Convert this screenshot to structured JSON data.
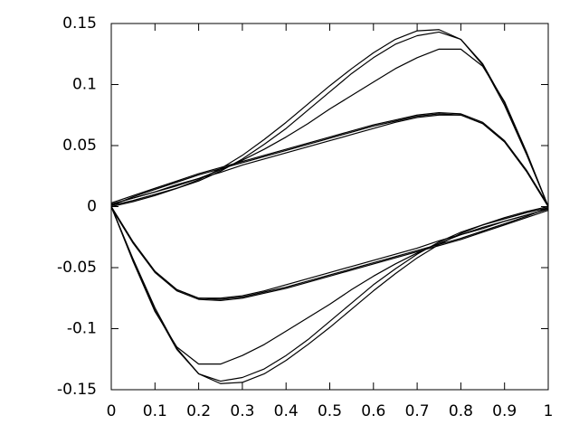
{
  "chart_data": {
    "type": "line",
    "x": [
      0,
      0.05,
      0.1,
      0.15,
      0.2,
      0.25,
      0.3,
      0.35,
      0.4,
      0.45,
      0.5,
      0.55,
      0.6,
      0.65,
      0.7,
      0.75,
      0.8,
      0.85,
      0.9,
      0.95,
      1
    ],
    "series": [
      {
        "color": "#000000",
        "values": [
          0,
          0.004,
          0.009,
          0.015,
          0.022,
          0.031,
          0.042,
          0.055,
          0.069,
          0.084,
          0.099,
          0.113,
          0.126,
          0.137,
          0.144,
          0.145,
          0.137,
          0.116,
          0.083,
          0.043,
          0
        ]
      },
      {
        "color": "#000000",
        "values": [
          0.001,
          0.005,
          0.01,
          0.015,
          0.021,
          0.029,
          0.039,
          0.051,
          0.064,
          0.079,
          0.094,
          0.109,
          0.122,
          0.133,
          0.14,
          0.143,
          0.137,
          0.117,
          0.085,
          0.044,
          0
        ]
      },
      {
        "color": "#000000",
        "values": [
          0.002,
          0.007,
          0.012,
          0.017,
          0.023,
          0.03,
          0.038,
          0.047,
          0.057,
          0.068,
          0.08,
          0.091,
          0.102,
          0.113,
          0.122,
          0.129,
          0.129,
          0.115,
          0.086,
          0.045,
          0
        ]
      },
      {
        "color": "#000000",
        "values": [
          0.001,
          0.008,
          0.014,
          0.02,
          0.026,
          0.031,
          0.036,
          0.041,
          0.046,
          0.051,
          0.056,
          0.061,
          0.066,
          0.07,
          0.074,
          0.076,
          0.075,
          0.068,
          0.053,
          0.029,
          0
        ]
      },
      {
        "color": "#000000",
        "values": [
          0.003,
          0.009,
          0.015,
          0.021,
          0.027,
          0.032,
          0.037,
          0.042,
          0.047,
          0.052,
          0.057,
          0.062,
          0.067,
          0.071,
          0.075,
          0.077,
          0.076,
          0.069,
          0.054,
          0.03,
          0.001
        ]
      },
      {
        "color": "#000000",
        "values": [
          0.002,
          0.007,
          0.012,
          0.018,
          0.023,
          0.028,
          0.034,
          0.039,
          0.044,
          0.049,
          0.054,
          0.059,
          0.064,
          0.069,
          0.073,
          0.075,
          0.075,
          0.068,
          0.053,
          0.029,
          0
        ]
      },
      {
        "color": "#000000",
        "values": [
          0,
          -0.043,
          -0.083,
          -0.116,
          -0.137,
          -0.145,
          -0.144,
          -0.137,
          -0.126,
          -0.113,
          -0.099,
          -0.084,
          -0.069,
          -0.055,
          -0.042,
          -0.031,
          -0.022,
          -0.015,
          -0.009,
          -0.004,
          0
        ]
      },
      {
        "color": "#000000",
        "values": [
          0,
          -0.044,
          -0.085,
          -0.117,
          -0.137,
          -0.143,
          -0.14,
          -0.133,
          -0.122,
          -0.109,
          -0.094,
          -0.079,
          -0.064,
          -0.051,
          -0.039,
          -0.029,
          -0.021,
          -0.015,
          -0.01,
          -0.005,
          -0.001
        ]
      },
      {
        "color": "#000000",
        "values": [
          0,
          -0.045,
          -0.086,
          -0.115,
          -0.129,
          -0.129,
          -0.122,
          -0.113,
          -0.102,
          -0.091,
          -0.08,
          -0.068,
          -0.057,
          -0.047,
          -0.038,
          -0.03,
          -0.023,
          -0.017,
          -0.012,
          -0.007,
          -0.002
        ]
      },
      {
        "color": "#000000",
        "values": [
          0,
          -0.029,
          -0.053,
          -0.068,
          -0.075,
          -0.076,
          -0.074,
          -0.07,
          -0.066,
          -0.061,
          -0.056,
          -0.051,
          -0.046,
          -0.041,
          -0.036,
          -0.031,
          -0.026,
          -0.02,
          -0.014,
          -0.008,
          -0.001
        ]
      },
      {
        "color": "#000000",
        "values": [
          -0.001,
          -0.03,
          -0.054,
          -0.069,
          -0.076,
          -0.077,
          -0.075,
          -0.071,
          -0.067,
          -0.062,
          -0.057,
          -0.052,
          -0.047,
          -0.042,
          -0.037,
          -0.032,
          -0.027,
          -0.021,
          -0.015,
          -0.009,
          -0.003
        ]
      },
      {
        "color": "#000000",
        "values": [
          0,
          -0.029,
          -0.053,
          -0.068,
          -0.075,
          -0.075,
          -0.073,
          -0.069,
          -0.064,
          -0.059,
          -0.054,
          -0.049,
          -0.044,
          -0.039,
          -0.034,
          -0.028,
          -0.023,
          -0.018,
          -0.012,
          -0.007,
          -0.002
        ]
      }
    ],
    "xlim": [
      0,
      1
    ],
    "xticks": [
      0,
      0.1,
      0.2,
      0.3,
      0.4,
      0.5,
      0.6,
      0.7,
      0.8,
      0.9,
      1
    ],
    "ylim": [
      -0.15,
      0.15
    ],
    "yticks": [
      -0.15,
      -0.1,
      -0.05,
      0,
      0.05,
      0.1,
      0.15
    ],
    "grid": false
  }
}
